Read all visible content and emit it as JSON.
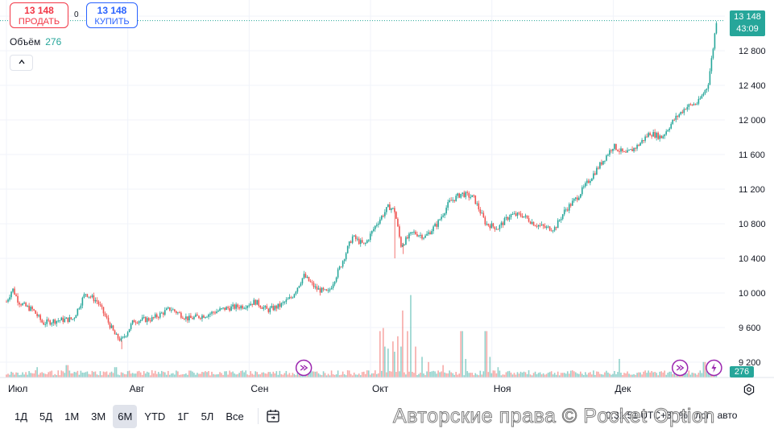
{
  "trade": {
    "sell_price": "13 148",
    "sell_label": "ПРОДАТЬ",
    "buy_price": "13 148",
    "buy_label": "КУПИТЬ",
    "spread": "0"
  },
  "volume_legend": {
    "label": "Объём",
    "value": "276"
  },
  "collapse_icon": "chevron-up-icon",
  "last_price": {
    "price": "13 148",
    "countdown": "43:09",
    "color": "#26a69a"
  },
  "volume_badge": "276",
  "timeframes": [
    "1Д",
    "5Д",
    "1М",
    "3М",
    "6М",
    "YTD",
    "1Г",
    "5Л",
    "Все"
  ],
  "active_timeframe": "6М",
  "bottom_right": {
    "time": "0:31:51 UTC+3",
    "pct": "%",
    "log": "лог",
    "auto": "авто"
  },
  "watermark": "Авторские права © Pocket Option",
  "colors": {
    "up": "#26a69a",
    "down": "#ef5350",
    "grid": "#f0f3fa",
    "event": "#9c27b0"
  },
  "chart_data": {
    "type": "candlestick",
    "y_ticks": [
      "13 200",
      "12 800",
      "12 400",
      "12 000",
      "11 600",
      "11 200",
      "10 800",
      "10 400",
      "10 000",
      "9 600",
      "9 200"
    ],
    "y_values": [
      13200,
      12800,
      12400,
      12000,
      11600,
      11200,
      10800,
      10400,
      10000,
      9600,
      9200
    ],
    "ylim": [
      9000,
      13300
    ],
    "x_ticks": [
      "Июл",
      "Авг",
      "Сен",
      "Окт",
      "Ноя",
      "Дек"
    ],
    "x_tick_pos": [
      0,
      1,
      2,
      3,
      4,
      5
    ],
    "xlim": [
      -0.02,
      5.92
    ],
    "price_path": [
      [
        0.0,
        9900
      ],
      [
        0.05,
        10050
      ],
      [
        0.1,
        9900
      ],
      [
        0.15,
        9850
      ],
      [
        0.22,
        9800
      ],
      [
        0.3,
        9650
      ],
      [
        0.4,
        9680
      ],
      [
        0.55,
        9700
      ],
      [
        0.65,
        10000
      ],
      [
        0.75,
        9900
      ],
      [
        0.9,
        9500
      ],
      [
        0.95,
        9450
      ],
      [
        1.05,
        9680
      ],
      [
        1.2,
        9700
      ],
      [
        1.35,
        9820
      ],
      [
        1.5,
        9700
      ],
      [
        1.65,
        9750
      ],
      [
        1.8,
        9820
      ],
      [
        1.95,
        9850
      ],
      [
        2.05,
        9900
      ],
      [
        2.15,
        9800
      ],
      [
        2.25,
        9850
      ],
      [
        2.35,
        9950
      ],
      [
        2.45,
        10200
      ],
      [
        2.55,
        10050
      ],
      [
        2.65,
        10000
      ],
      [
        2.75,
        10300
      ],
      [
        2.85,
        10650
      ],
      [
        2.95,
        10550
      ],
      [
        3.05,
        10800
      ],
      [
        3.15,
        11000
      ],
      [
        3.2,
        10950
      ],
      [
        3.25,
        10550
      ],
      [
        3.35,
        10700
      ],
      [
        3.45,
        10650
      ],
      [
        3.55,
        10800
      ],
      [
        3.65,
        11050
      ],
      [
        3.75,
        11150
      ],
      [
        3.85,
        11100
      ],
      [
        3.95,
        10800
      ],
      [
        4.05,
        10750
      ],
      [
        4.15,
        10900
      ],
      [
        4.25,
        10900
      ],
      [
        4.35,
        10800
      ],
      [
        4.45,
        10750
      ],
      [
        4.52,
        10750
      ],
      [
        4.6,
        10950
      ],
      [
        4.7,
        11100
      ],
      [
        4.8,
        11300
      ],
      [
        4.9,
        11500
      ],
      [
        5.0,
        11700
      ],
      [
        5.1,
        11600
      ],
      [
        5.2,
        11700
      ],
      [
        5.3,
        11850
      ],
      [
        5.4,
        11800
      ],
      [
        5.5,
        12000
      ],
      [
        5.6,
        12150
      ],
      [
        5.7,
        12200
      ],
      [
        5.78,
        12400
      ],
      [
        5.82,
        12800
      ],
      [
        5.85,
        13148
      ]
    ],
    "last_price": 13148,
    "volume_spikes": [
      [
        3.08,
        0.45
      ],
      [
        3.1,
        0.48
      ],
      [
        3.12,
        0.3
      ],
      [
        3.15,
        0.28
      ],
      [
        3.18,
        0.35
      ],
      [
        3.2,
        0.25
      ],
      [
        3.22,
        0.4
      ],
      [
        3.25,
        0.3
      ],
      [
        3.27,
        0.65
      ],
      [
        3.3,
        0.45
      ],
      [
        3.33,
        0.8
      ],
      [
        3.37,
        0.3
      ],
      [
        3.42,
        0.2
      ],
      [
        3.48,
        0.15
      ],
      [
        3.6,
        0.12
      ],
      [
        3.75,
        0.45
      ],
      [
        3.78,
        0.18
      ],
      [
        3.95,
        0.45
      ],
      [
        3.98,
        0.2
      ],
      [
        4.05,
        0.1
      ],
      [
        0.25,
        0.1
      ],
      [
        0.5,
        0.12
      ],
      [
        0.9,
        0.1
      ],
      [
        5.05,
        0.18
      ],
      [
        5.55,
        0.1
      ],
      [
        5.75,
        0.15
      ]
    ],
    "events": [
      2.45,
      5.55,
      5.83
    ]
  }
}
